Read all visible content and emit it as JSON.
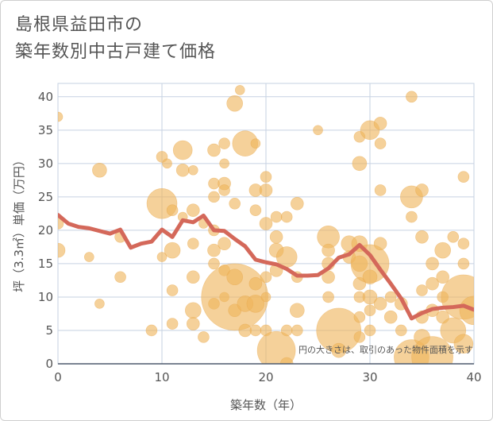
{
  "title_line1": "島根県益田市の",
  "title_line2": "築年数別中古戸建て価格",
  "chart_data": {
    "type": "scatter",
    "xlabel": "築年数（年）",
    "ylabel": "坪（3.3㎡）単価（万円）",
    "xlim": [
      0,
      40
    ],
    "ylim": [
      0,
      42
    ],
    "x_ticks": [
      "0",
      "10",
      "20",
      "30",
      "40"
    ],
    "y_ticks": [
      "0",
      "5",
      "10",
      "15",
      "20",
      "25",
      "30",
      "35",
      "40"
    ],
    "grid": true,
    "note": "円の大きさは、取引のあった物件面積を示す",
    "colors": {
      "bubble": "#efb55c",
      "line": "#d4685a",
      "grid": "#c6d2e2",
      "axis": "#4f5a6e"
    },
    "trend_line": {
      "x": [
        0,
        1,
        2,
        3,
        4,
        5,
        6,
        7,
        8,
        9,
        10,
        11,
        12,
        13,
        14,
        15,
        16,
        17,
        18,
        19,
        20,
        21,
        22,
        23,
        24,
        25,
        26,
        27,
        28,
        29,
        30,
        31,
        32,
        33,
        34,
        35,
        36,
        37,
        38,
        39,
        40
      ],
      "y": [
        22.3,
        21.0,
        20.5,
        20.3,
        19.9,
        19.5,
        20.1,
        17.4,
        18.0,
        18.3,
        20.1,
        19.0,
        21.5,
        21.2,
        22.2,
        20.0,
        19.9,
        18.7,
        17.6,
        15.6,
        15.2,
        14.9,
        14.2,
        13.2,
        13.2,
        13.3,
        14.3,
        15.9,
        16.4,
        17.8,
        16.3,
        14.1,
        12.0,
        9.8,
        6.8,
        7.6,
        8.2,
        8.4,
        8.5,
        8.7,
        8.1
      ]
    },
    "bubbles": [
      {
        "x": 0,
        "y": 37,
        "r": 6
      },
      {
        "x": 0,
        "y": 21,
        "r": 7
      },
      {
        "x": 0,
        "y": 17,
        "r": 9
      },
      {
        "x": 3,
        "y": 16,
        "r": 6
      },
      {
        "x": 4,
        "y": 29,
        "r": 9
      },
      {
        "x": 4,
        "y": 9,
        "r": 6
      },
      {
        "x": 6,
        "y": 19,
        "r": 7
      },
      {
        "x": 6,
        "y": 13,
        "r": 7
      },
      {
        "x": 9,
        "y": 5,
        "r": 7
      },
      {
        "x": 10,
        "y": 31,
        "r": 7
      },
      {
        "x": 10,
        "y": 24,
        "r": 19
      },
      {
        "x": 10,
        "y": 16,
        "r": 6
      },
      {
        "x": 10.5,
        "y": 30,
        "r": 6
      },
      {
        "x": 11,
        "y": 17,
        "r": 10
      },
      {
        "x": 11,
        "y": 23,
        "r": 7
      },
      {
        "x": 11,
        "y": 11,
        "r": 7
      },
      {
        "x": 11,
        "y": 6,
        "r": 7
      },
      {
        "x": 12,
        "y": 32,
        "r": 12
      },
      {
        "x": 12,
        "y": 29,
        "r": 8
      },
      {
        "x": 12,
        "y": 22,
        "r": 6
      },
      {
        "x": 13,
        "y": 29,
        "r": 6
      },
      {
        "x": 13,
        "y": 23,
        "r": 8
      },
      {
        "x": 13,
        "y": 18,
        "r": 7
      },
      {
        "x": 13,
        "y": 13,
        "r": 8
      },
      {
        "x": 13,
        "y": 8,
        "r": 10
      },
      {
        "x": 13,
        "y": 6,
        "r": 8
      },
      {
        "x": 14,
        "y": 21,
        "r": 6
      },
      {
        "x": 14,
        "y": 4,
        "r": 7
      },
      {
        "x": 15,
        "y": 32,
        "r": 8
      },
      {
        "x": 15,
        "y": 27,
        "r": 7
      },
      {
        "x": 15,
        "y": 25,
        "r": 7
      },
      {
        "x": 15,
        "y": 20,
        "r": 7
      },
      {
        "x": 15,
        "y": 17,
        "r": 8
      },
      {
        "x": 15,
        "y": 15,
        "r": 7
      },
      {
        "x": 15,
        "y": 9,
        "r": 7
      },
      {
        "x": 16,
        "y": 33,
        "r": 7
      },
      {
        "x": 16,
        "y": 30,
        "r": 6
      },
      {
        "x": 16,
        "y": 27,
        "r": 8
      },
      {
        "x": 16,
        "y": 26,
        "r": 7
      },
      {
        "x": 16,
        "y": 18,
        "r": 8
      },
      {
        "x": 16,
        "y": 14,
        "r": 7
      },
      {
        "x": 16,
        "y": 10,
        "r": 6
      },
      {
        "x": 17,
        "y": 39,
        "r": 10
      },
      {
        "x": 17,
        "y": 24,
        "r": 7
      },
      {
        "x": 17,
        "y": 10,
        "r": 42
      },
      {
        "x": 17,
        "y": 13,
        "r": 10
      },
      {
        "x": 17,
        "y": 8,
        "r": 8
      },
      {
        "x": 17.5,
        "y": 41,
        "r": 6
      },
      {
        "x": 18,
        "y": 33,
        "r": 16
      },
      {
        "x": 18,
        "y": 9,
        "r": 10
      },
      {
        "x": 18,
        "y": 5,
        "r": 8
      },
      {
        "x": 19,
        "y": 26,
        "r": 8
      },
      {
        "x": 19,
        "y": 23,
        "r": 7
      },
      {
        "x": 19,
        "y": 12,
        "r": 8
      },
      {
        "x": 19,
        "y": 9,
        "r": 11
      },
      {
        "x": 19,
        "y": 5,
        "r": 7
      },
      {
        "x": 19,
        "y": 33,
        "r": 6
      },
      {
        "x": 20,
        "y": 28,
        "r": 7
      },
      {
        "x": 20,
        "y": 26,
        "r": 8
      },
      {
        "x": 20,
        "y": 21,
        "r": 8
      },
      {
        "x": 20,
        "y": 13,
        "r": 7
      },
      {
        "x": 20,
        "y": 10,
        "r": 6
      },
      {
        "x": 20,
        "y": 5,
        "r": 7
      },
      {
        "x": 21,
        "y": 22,
        "r": 7
      },
      {
        "x": 21,
        "y": 19,
        "r": 8
      },
      {
        "x": 21,
        "y": 17,
        "r": 9
      },
      {
        "x": 21,
        "y": 14,
        "r": 8
      },
      {
        "x": 21,
        "y": 2,
        "r": 24
      },
      {
        "x": 22,
        "y": 22,
        "r": 7
      },
      {
        "x": 22,
        "y": 16,
        "r": 13
      },
      {
        "x": 22,
        "y": 5,
        "r": 7
      },
      {
        "x": 22,
        "y": 0,
        "r": 8
      },
      {
        "x": 23,
        "y": 24,
        "r": 8
      },
      {
        "x": 23,
        "y": 13,
        "r": 7
      },
      {
        "x": 23,
        "y": 8,
        "r": 9
      },
      {
        "x": 23,
        "y": 5,
        "r": 7
      },
      {
        "x": 25,
        "y": 35,
        "r": 6
      },
      {
        "x": 26,
        "y": 19,
        "r": 14
      },
      {
        "x": 26,
        "y": 17,
        "r": 8
      },
      {
        "x": 26,
        "y": 15,
        "r": 8
      },
      {
        "x": 26,
        "y": 13,
        "r": 8
      },
      {
        "x": 26,
        "y": 10,
        "r": 7
      },
      {
        "x": 27,
        "y": 5,
        "r": 28
      },
      {
        "x": 27,
        "y": 2,
        "r": 9
      },
      {
        "x": 28,
        "y": 18,
        "r": 10
      },
      {
        "x": 28,
        "y": 16,
        "r": 8
      },
      {
        "x": 29,
        "y": 34,
        "r": 7
      },
      {
        "x": 29,
        "y": 30,
        "r": 9
      },
      {
        "x": 29,
        "y": 18,
        "r": 10
      },
      {
        "x": 29,
        "y": 15,
        "r": 10
      },
      {
        "x": 29,
        "y": 12,
        "r": 8
      },
      {
        "x": 29,
        "y": 10,
        "r": 7
      },
      {
        "x": 29,
        "y": 7,
        "r": 7
      },
      {
        "x": 29,
        "y": 4,
        "r": 7
      },
      {
        "x": 30,
        "y": 35,
        "r": 12
      },
      {
        "x": 30,
        "y": 15,
        "r": 24
      },
      {
        "x": 30,
        "y": 13,
        "r": 9
      },
      {
        "x": 30,
        "y": 10,
        "r": 9
      },
      {
        "x": 30,
        "y": 8,
        "r": 7
      },
      {
        "x": 30,
        "y": 5,
        "r": 7
      },
      {
        "x": 31,
        "y": 36,
        "r": 8
      },
      {
        "x": 31,
        "y": 33,
        "r": 7
      },
      {
        "x": 31,
        "y": 26,
        "r": 7
      },
      {
        "x": 31,
        "y": 18,
        "r": 8
      },
      {
        "x": 31,
        "y": 9,
        "r": 8
      },
      {
        "x": 32,
        "y": 10,
        "r": 7
      },
      {
        "x": 32,
        "y": 7,
        "r": 8
      },
      {
        "x": 33,
        "y": 9,
        "r": 8
      },
      {
        "x": 33,
        "y": 5,
        "r": 7
      },
      {
        "x": 34,
        "y": 40,
        "r": 7
      },
      {
        "x": 34,
        "y": 25,
        "r": 14
      },
      {
        "x": 34,
        "y": 22,
        "r": 7
      },
      {
        "x": 34,
        "y": 1,
        "r": 22
      },
      {
        "x": 35,
        "y": 26,
        "r": 8
      },
      {
        "x": 35,
        "y": 19,
        "r": 8
      },
      {
        "x": 35,
        "y": 11,
        "r": 7
      },
      {
        "x": 35,
        "y": 7,
        "r": 8
      },
      {
        "x": 35,
        "y": 4,
        "r": 10
      },
      {
        "x": 36,
        "y": 15,
        "r": 8
      },
      {
        "x": 36,
        "y": 12,
        "r": 8
      },
      {
        "x": 36,
        "y": 8,
        "r": 8
      },
      {
        "x": 36,
        "y": 1,
        "r": 26
      },
      {
        "x": 37,
        "y": 17,
        "r": 10
      },
      {
        "x": 37,
        "y": 13,
        "r": 8
      },
      {
        "x": 37,
        "y": 10,
        "r": 7
      },
      {
        "x": 37,
        "y": 7,
        "r": 8
      },
      {
        "x": 38,
        "y": 5,
        "r": 16
      },
      {
        "x": 38,
        "y": 19,
        "r": 7
      },
      {
        "x": 39,
        "y": 28,
        "r": 7
      },
      {
        "x": 39,
        "y": 18,
        "r": 7
      },
      {
        "x": 39,
        "y": 15,
        "r": 7
      },
      {
        "x": 39,
        "y": 10,
        "r": 28
      },
      {
        "x": 39,
        "y": 3,
        "r": 12
      },
      {
        "x": 40,
        "y": 8,
        "r": 18
      }
    ]
  }
}
